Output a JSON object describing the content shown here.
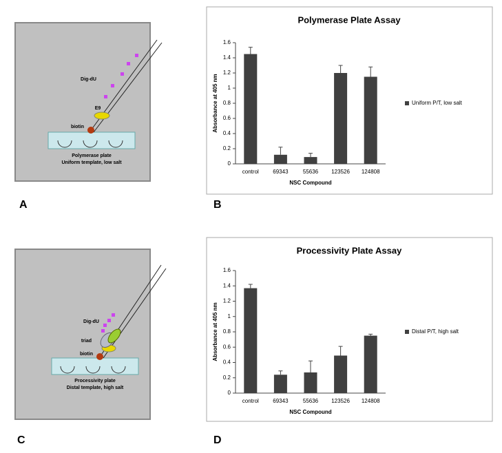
{
  "panel_labels": [
    "A",
    "B",
    "C",
    "D"
  ],
  "diagrams": [
    {
      "labels": [
        "Dig-dU",
        "E9",
        "biotin"
      ],
      "caption": [
        "Polymerase plate",
        "Uniform template, low salt"
      ]
    },
    {
      "labels": [
        "Dig-dU",
        "triad",
        "biotin"
      ],
      "caption": [
        "Processivity plate",
        "Distal template, high salt"
      ]
    }
  ],
  "chart_data": [
    {
      "type": "bar",
      "title": "Polymerase Plate Assay",
      "x_label": "NSC Compound",
      "y_label": "Absorbance at 405 nm",
      "categories": [
        "control",
        "69343",
        "55636",
        "123526",
        "124808"
      ],
      "series": [
        {
          "name": "Uniform P/T, low salt",
          "color": "#404040",
          "values": [
            1.45,
            0.12,
            0.09,
            1.2,
            1.15
          ],
          "errors": [
            0.09,
            0.1,
            0.05,
            0.1,
            0.13
          ]
        }
      ],
      "ylim": [
        0,
        1.6
      ],
      "yticks": [
        0,
        0.2,
        0.4,
        0.6,
        0.8,
        1,
        1.2,
        1.4,
        1.6
      ],
      "legend": "right"
    },
    {
      "type": "bar",
      "title": "Processivity Plate Assay",
      "x_label": "NSC Compound",
      "y_label": "Absorbance at 405 nm",
      "categories": [
        "control",
        "69343",
        "55636",
        "123526",
        "124808"
      ],
      "series": [
        {
          "name": "Distal P/T, high salt",
          "color": "#404040",
          "values": [
            1.37,
            0.24,
            0.27,
            0.49,
            0.75
          ],
          "errors": [
            0.05,
            0.05,
            0.15,
            0.12,
            0.02
          ]
        }
      ],
      "ylim": [
        0,
        1.6
      ],
      "yticks": [
        0,
        0.2,
        0.4,
        0.6,
        0.8,
        1,
        1.2,
        1.4,
        1.6
      ],
      "legend": "right"
    }
  ]
}
